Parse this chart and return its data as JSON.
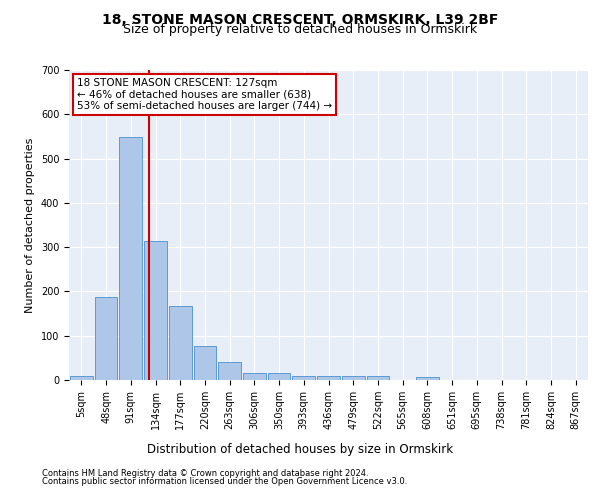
{
  "title1": "18, STONE MASON CRESCENT, ORMSKIRK, L39 2BF",
  "title2": "Size of property relative to detached houses in Ormskirk",
  "xlabel": "Distribution of detached houses by size in Ormskirk",
  "ylabel": "Number of detached properties",
  "bar_labels": [
    "5sqm",
    "48sqm",
    "91sqm",
    "134sqm",
    "177sqm",
    "220sqm",
    "263sqm",
    "306sqm",
    "350sqm",
    "393sqm",
    "436sqm",
    "479sqm",
    "522sqm",
    "565sqm",
    "608sqm",
    "651sqm",
    "695sqm",
    "738sqm",
    "781sqm",
    "824sqm",
    "867sqm"
  ],
  "bar_values": [
    8,
    188,
    548,
    315,
    168,
    77,
    40,
    15,
    15,
    10,
    10,
    10,
    8,
    0,
    6,
    0,
    0,
    0,
    0,
    0,
    0
  ],
  "bar_color": "#aec6e8",
  "bar_edgecolor": "#5b9bd5",
  "vline_x": 2.72,
  "vline_color": "#cc0000",
  "annotation_text": "18 STONE MASON CRESCENT: 127sqm\n← 46% of detached houses are smaller (638)\n53% of semi-detached houses are larger (744) →",
  "annotation_box_color": "#ffffff",
  "annotation_box_edgecolor": "#cc0000",
  "ylim": [
    0,
    700
  ],
  "yticks": [
    0,
    100,
    200,
    300,
    400,
    500,
    600,
    700
  ],
  "footnote1": "Contains HM Land Registry data © Crown copyright and database right 2024.",
  "footnote2": "Contains public sector information licensed under the Open Government Licence v3.0.",
  "bg_color": "#e8eef8",
  "grid_color": "#ffffff",
  "title1_fontsize": 10,
  "title2_fontsize": 9,
  "ann_fontsize": 7.5,
  "xlabel_fontsize": 8.5,
  "ylabel_fontsize": 8,
  "tick_fontsize": 7,
  "footnote_fontsize": 6.0
}
